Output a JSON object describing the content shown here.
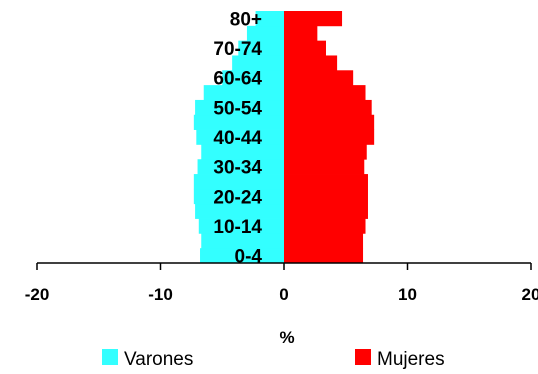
{
  "chart_data": {
    "type": "bar",
    "orientation": "horizontal",
    "layout": "population-pyramid",
    "age_groups": [
      "0-4",
      "5-9",
      "10-14",
      "15-19",
      "20-24",
      "25-29",
      "30-34",
      "35-39",
      "40-44",
      "45-49",
      "50-54",
      "55-59",
      "60-64",
      "65-69",
      "70-74",
      "75-79",
      "80+"
    ],
    "visible_age_labels": [
      "80+",
      "70-74",
      "60-64",
      "50-54",
      "40-44",
      "30-34",
      "20-24",
      "10-14",
      "0-4"
    ],
    "series": [
      {
        "name": "Varones",
        "color": "#33ffff",
        "side": "left",
        "values": [
          -6.8,
          -6.7,
          -6.9,
          -7.2,
          -7.3,
          -7.3,
          -7.0,
          -6.7,
          -7.1,
          -7.3,
          -7.2,
          -6.5,
          -5.0,
          -4.2,
          -3.7,
          -3.0,
          -2.3
        ]
      },
      {
        "name": "Mujeres",
        "color": "#ff0000",
        "side": "right",
        "values": [
          6.4,
          6.4,
          6.6,
          6.8,
          6.8,
          6.8,
          6.5,
          6.7,
          7.3,
          7.3,
          7.1,
          6.6,
          5.6,
          4.3,
          3.4,
          2.7,
          4.7
        ]
      }
    ],
    "xticks": [
      "-20",
      "-10",
      "0",
      "10",
      "20"
    ],
    "xlim": [
      -20,
      20
    ],
    "xlabel": "%",
    "legend_position": "bottom",
    "grid": false
  }
}
